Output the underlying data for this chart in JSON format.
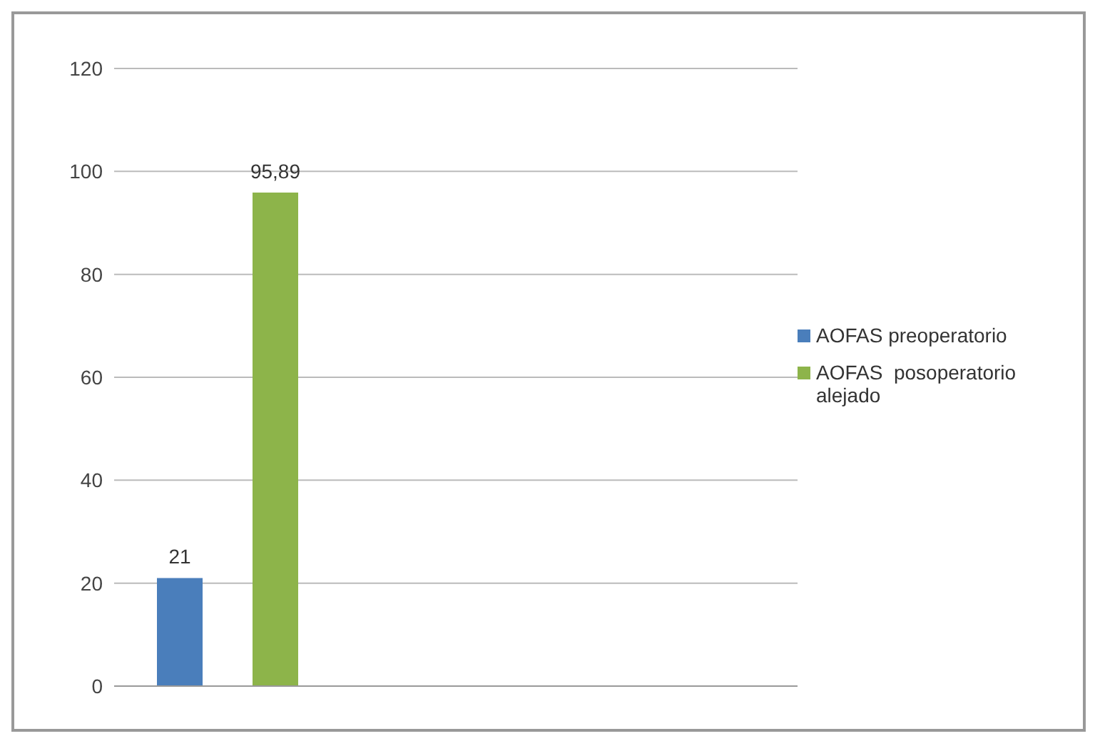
{
  "chart_data": {
    "type": "bar",
    "categories": [
      null,
      null,
      null
    ],
    "series": [
      {
        "name": "AOFAS preoperatorio",
        "color": "#4a7ebb",
        "values": [
          21,
          null,
          null
        ],
        "value_labels": [
          "21",
          null,
          null
        ]
      },
      {
        "name": "AOFAS  posoperatorio alejado",
        "color": "#8db44a",
        "values": [
          95.89,
          null,
          null
        ],
        "value_labels": [
          "95,89",
          null,
          null
        ]
      }
    ],
    "ylim": [
      0,
      120
    ],
    "yticks": [
      0,
      20,
      40,
      60,
      80,
      100,
      120
    ],
    "grid": "y",
    "legend": "right"
  }
}
